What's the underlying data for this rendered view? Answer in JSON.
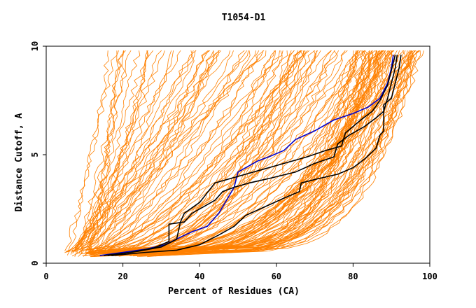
{
  "chart_data": {
    "type": "line",
    "title": "T1054-D1",
    "xlabel": "Percent of Residues (CA)",
    "ylabel": "Distance Cutoff, A",
    "xlim": [
      0,
      100
    ],
    "ylim": [
      0,
      10
    ],
    "x_ticks": [
      0,
      20,
      40,
      60,
      80,
      100
    ],
    "y_ticks": [
      0,
      5,
      10
    ],
    "grid": false,
    "legend": "none",
    "colors": {
      "background_curves": "#ff8000",
      "highlight_black": "#000000",
      "highlight_blue": "#0000cc",
      "axes": "#000000"
    },
    "background_curve_count": 150,
    "highlight_series": [
      {
        "color": "#0000cc",
        "points": [
          [
            14,
            0.35
          ],
          [
            20,
            0.5
          ],
          [
            26,
            0.65
          ],
          [
            31,
            0.85
          ],
          [
            35,
            1.2
          ],
          [
            38,
            1.45
          ],
          [
            42,
            1.7
          ],
          [
            45,
            2.3
          ],
          [
            47,
            2.9
          ],
          [
            49,
            3.5
          ],
          [
            50,
            4.2
          ],
          [
            52,
            4.4
          ],
          [
            55,
            4.7
          ],
          [
            58,
            4.9
          ],
          [
            62,
            5.2
          ],
          [
            65,
            5.7
          ],
          [
            70,
            6.1
          ],
          [
            75,
            6.6
          ],
          [
            80,
            6.9
          ],
          [
            84,
            7.2
          ],
          [
            87,
            7.6
          ],
          [
            89,
            8.3
          ],
          [
            90,
            9.0
          ],
          [
            90.5,
            9.6
          ]
        ]
      },
      {
        "color": "#000000",
        "points": [
          [
            15,
            0.35
          ],
          [
            22,
            0.5
          ],
          [
            28,
            0.7
          ],
          [
            32,
            1.0
          ],
          [
            32,
            1.8
          ],
          [
            36,
            1.9
          ],
          [
            38,
            2.3
          ],
          [
            41,
            2.6
          ],
          [
            44,
            2.9
          ],
          [
            46,
            3.3
          ],
          [
            49,
            3.5
          ],
          [
            53,
            3.7
          ],
          [
            58,
            3.9
          ],
          [
            65,
            4.2
          ],
          [
            70,
            4.6
          ],
          [
            75,
            4.9
          ],
          [
            76,
            5.5
          ],
          [
            79,
            5.9
          ],
          [
            83,
            6.3
          ],
          [
            86,
            6.7
          ],
          [
            88,
            7.0
          ],
          [
            89,
            7.6
          ],
          [
            90,
            8.3
          ],
          [
            91,
            9.0
          ],
          [
            91.5,
            9.6
          ]
        ]
      },
      {
        "color": "#000000",
        "points": [
          [
            16,
            0.35
          ],
          [
            24,
            0.55
          ],
          [
            30,
            0.75
          ],
          [
            34,
            1.1
          ],
          [
            35,
            1.9
          ],
          [
            36,
            2.3
          ],
          [
            40,
            2.8
          ],
          [
            44,
            3.7
          ],
          [
            50,
            4.0
          ],
          [
            56,
            4.3
          ],
          [
            62,
            4.6
          ],
          [
            68,
            4.9
          ],
          [
            73,
            5.2
          ],
          [
            77,
            5.4
          ],
          [
            78,
            6.0
          ],
          [
            82,
            6.6
          ],
          [
            85,
            7.0
          ],
          [
            87,
            7.5
          ],
          [
            89,
            8.2
          ],
          [
            90,
            8.9
          ],
          [
            91,
            9.6
          ]
        ]
      },
      {
        "color": "#000000",
        "points": [
          [
            17,
            0.35
          ],
          [
            26,
            0.5
          ],
          [
            34,
            0.6
          ],
          [
            40,
            0.85
          ],
          [
            45,
            1.3
          ],
          [
            49,
            1.7
          ],
          [
            52,
            2.2
          ],
          [
            57,
            2.6
          ],
          [
            62,
            3.0
          ],
          [
            66,
            3.3
          ],
          [
            66.5,
            3.7
          ],
          [
            71,
            3.9
          ],
          [
            76,
            4.1
          ],
          [
            80,
            4.4
          ],
          [
            83,
            4.8
          ],
          [
            86,
            5.3
          ],
          [
            87,
            5.9
          ],
          [
            88,
            6.1
          ],
          [
            88,
            7.3
          ],
          [
            90,
            7.6
          ],
          [
            91,
            8.3
          ],
          [
            92,
            9.0
          ],
          [
            92.5,
            9.6
          ]
        ]
      }
    ]
  }
}
